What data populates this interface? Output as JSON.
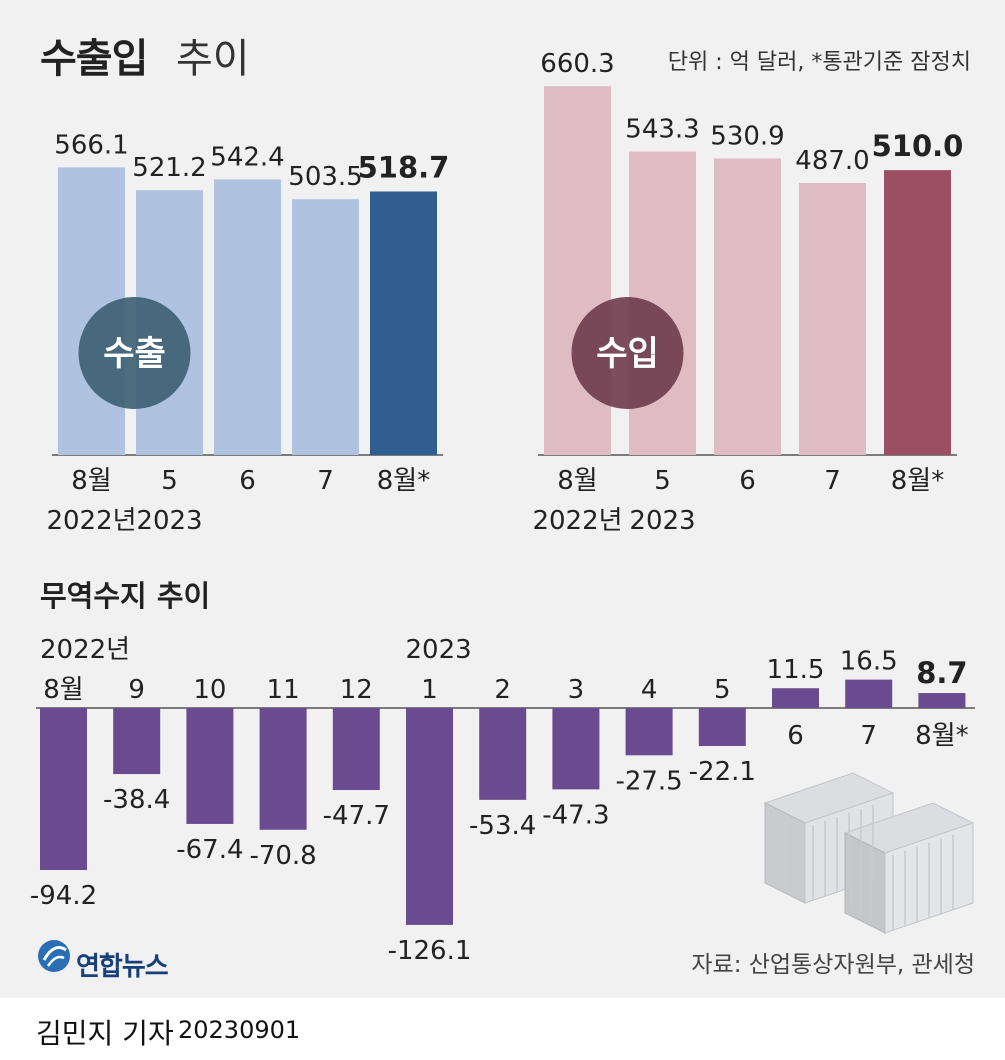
{
  "header": {
    "title_strong": "수출입",
    "title_light": "추이",
    "unit_note": "단위 : 억 달러, *통관기준 잠정치"
  },
  "chart_data": [
    {
      "type": "bar",
      "label": "수출",
      "categories": [
        "8월|2022년",
        "5|2023",
        "6",
        "7",
        "8월*"
      ],
      "values": [
        566.1,
        521.2,
        542.4,
        503.5,
        518.7
      ],
      "highlight_last": true,
      "colors": {
        "bar": "#afc2df",
        "highlight": "#2f5d8f",
        "badge": "#3c5e72"
      },
      "ylim": [
        0,
        620
      ]
    },
    {
      "type": "bar",
      "label": "수입",
      "categories": [
        "8월|2022년",
        "5|2023",
        "6",
        "7",
        "8월*"
      ],
      "values": [
        660.3,
        543.3,
        530.9,
        487.0,
        510.0
      ],
      "highlight_last": true,
      "colors": {
        "bar": "#dfbcc3",
        "highlight": "#9b4f62",
        "badge": "#6e3b4c"
      },
      "ylim": [
        0,
        700
      ]
    },
    {
      "type": "bar",
      "title": "무역수지 추이",
      "categories": [
        "8월",
        "9",
        "10",
        "11",
        "12",
        "1",
        "2",
        "3",
        "4",
        "5",
        "6",
        "7",
        "8월*"
      ],
      "year_markers": [
        {
          "index": 0,
          "label": "2022년"
        },
        {
          "index": 5,
          "label": "2023"
        }
      ],
      "values": [
        -94.2,
        -38.4,
        -67.4,
        -70.8,
        -47.7,
        -126.1,
        -53.4,
        -47.3,
        -27.5,
        -22.1,
        11.5,
        16.5,
        8.7
      ],
      "highlight_last": true,
      "colors": {
        "bar": "#6b4b8f"
      }
    }
  ],
  "source": "자료: 산업통상자원부, 관세청",
  "logo": {
    "text": "연합뉴스",
    "colors": {
      "primary": "#17407a",
      "accent": "#2a6fb5"
    }
  },
  "byline": {
    "reporter": "김민지 기자",
    "date": "20230901"
  },
  "icons": [
    "shipping-containers-illustration",
    "yonhap-logo-icon"
  ]
}
